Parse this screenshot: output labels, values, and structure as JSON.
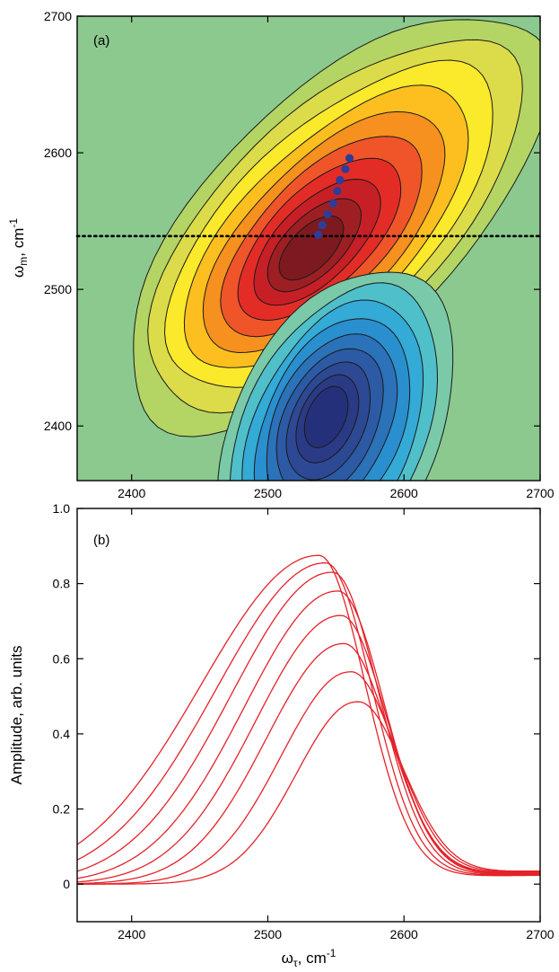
{
  "chart_data": [
    {
      "type": "heatmap",
      "panel_label": "(a)",
      "xlim": [
        2360,
        2700
      ],
      "ylim": [
        2360,
        2700
      ],
      "xticks": [
        "2400",
        "2500",
        "2600",
        "2700"
      ],
      "yticks": [
        "2400",
        "2500",
        "2600",
        "2700"
      ],
      "xlabel": "",
      "ylabel": "ωm, cm-1",
      "positive_peak": {
        "x": 2530,
        "y": 2528
      },
      "negative_peak": {
        "x": 2542,
        "y": 2408
      },
      "colors": {
        "positive": [
          "#b4d463",
          "#dcdb49",
          "#fbe92b",
          "#fcbf1f",
          "#f6901e",
          "#f0552a",
          "#e42c27",
          "#c61f26",
          "#9d1f23",
          "#7c1a1f"
        ],
        "negative": [
          "#7ac9a8",
          "#4fbfca",
          "#34aad6",
          "#2a8fce",
          "#2b72b9",
          "#2c5aa5",
          "#2d4994",
          "#2b3a85",
          "#25307a"
        ],
        "background": "#8cc98f"
      },
      "center_line_points": [
        {
          "x": 2537,
          "y": 2540
        },
        {
          "x": 2540,
          "y": 2547
        },
        {
          "x": 2544,
          "y": 2555
        },
        {
          "x": 2548,
          "y": 2563
        },
        {
          "x": 2551,
          "y": 2572
        },
        {
          "x": 2553,
          "y": 2580
        },
        {
          "x": 2557,
          "y": 2588
        },
        {
          "x": 2560,
          "y": 2596
        }
      ],
      "horizontal_dotted_line_y": 2539
    },
    {
      "type": "line",
      "panel_label": "(b)",
      "xlim": [
        2360,
        2700
      ],
      "ylim": [
        -0.1,
        1.0
      ],
      "xticks": [
        "2400",
        "2500",
        "2600",
        "2700"
      ],
      "yticks": [
        "0",
        "0.2",
        "0.4",
        "0.6",
        "0.8",
        "1.0"
      ],
      "xlabel": "ωτ, cm-1",
      "ylabel": "Amplitude, arb. units",
      "series_color": "#e3232a",
      "series": [
        {
          "peak_x": 2537,
          "peak_y": 0.875
        },
        {
          "peak_x": 2542,
          "peak_y": 0.855
        },
        {
          "peak_x": 2547,
          "peak_y": 0.83
        },
        {
          "peak_x": 2551,
          "peak_y": 0.78
        },
        {
          "peak_x": 2553,
          "peak_y": 0.715
        },
        {
          "peak_x": 2555,
          "peak_y": 0.64
        },
        {
          "peak_x": 2560,
          "peak_y": 0.565
        },
        {
          "peak_x": 2565,
          "peak_y": 0.485
        }
      ]
    }
  ]
}
